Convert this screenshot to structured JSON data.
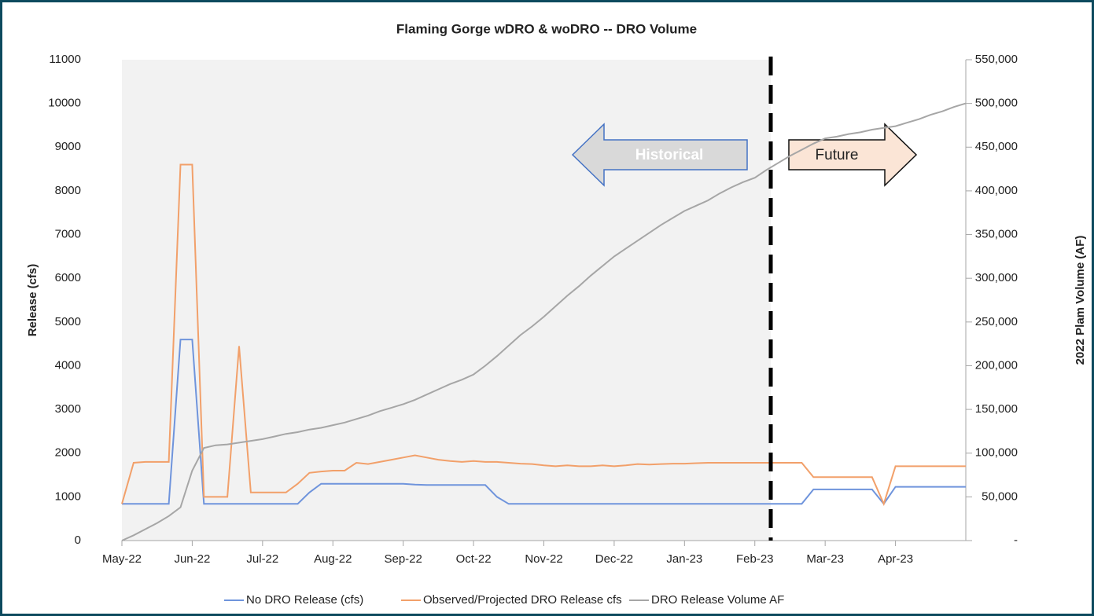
{
  "chart_data": {
    "type": "line",
    "title": "Flaming Gorge wDRO & woDRO -- DRO Volume",
    "y_label": "Release (cfs)",
    "y2_label": "2022 Plam Volume (AF)",
    "annotations": [
      "Historical",
      "Future"
    ],
    "legend": "bottom",
    "categories": [
      "May-22",
      null,
      null,
      null,
      null,
      null,
      "Jun-22",
      null,
      null,
      null,
      null,
      null,
      "Jul-22",
      null,
      null,
      null,
      null,
      null,
      "Aug-22",
      null,
      null,
      null,
      null,
      null,
      "Sep-22",
      null,
      null,
      null,
      null,
      null,
      "Oct-22",
      null,
      null,
      null,
      null,
      null,
      "Nov-22",
      null,
      null,
      null,
      null,
      null,
      "Dec-22",
      null,
      null,
      null,
      null,
      null,
      "Jan-23",
      null,
      null,
      null,
      null,
      null,
      "Feb-23",
      null,
      null,
      null,
      null,
      null,
      "Mar-23",
      null,
      null,
      null,
      null,
      null,
      "Apr-23",
      null,
      null,
      null,
      null,
      null,
      null
    ],
    "series": [
      {
        "name": "No DRO Release (cfs)",
        "color": "#6f94dc",
        "values": [
          840,
          840,
          840,
          840,
          840,
          4600,
          4600,
          840,
          840,
          840,
          840,
          840,
          840,
          840,
          840,
          840,
          1100,
          1300,
          1300,
          1300,
          1300,
          1300,
          1300,
          1300,
          1300,
          1280,
          1270,
          1270,
          1270,
          1270,
          1270,
          1270,
          1000,
          840,
          840,
          840,
          840,
          840,
          840,
          840,
          840,
          840,
          840,
          840,
          840,
          840,
          840,
          840,
          840,
          840,
          840,
          840,
          840,
          840,
          840,
          840,
          840,
          840,
          840,
          1170,
          1170,
          1170,
          1170,
          1170,
          1170,
          840,
          1230,
          1230,
          1230,
          1230,
          1230,
          1230,
          1230
        ]
      },
      {
        "name": "Observed/Projected DRO Release cfs",
        "color": "#f2a06a",
        "values": [
          840,
          1780,
          1800,
          1800,
          1800,
          8600,
          8600,
          1000,
          1000,
          1000,
          4450,
          1100,
          1100,
          1100,
          1100,
          1300,
          1550,
          1580,
          1600,
          1600,
          1780,
          1750,
          1800,
          1850,
          1900,
          1950,
          1900,
          1850,
          1820,
          1800,
          1820,
          1800,
          1800,
          1780,
          1760,
          1750,
          1720,
          1700,
          1720,
          1700,
          1700,
          1720,
          1700,
          1720,
          1750,
          1740,
          1750,
          1760,
          1760,
          1770,
          1780,
          1780,
          1780,
          1780,
          1780,
          1780,
          1780,
          1780,
          1780,
          1450,
          1450,
          1450,
          1450,
          1450,
          1450,
          840,
          1700,
          1700,
          1700,
          1700,
          1700,
          1700,
          1700
        ]
      },
      {
        "name": "DRO Release Volume AF",
        "color": "#a6a6a6",
        "axis": "y2",
        "values": [
          0,
          6000,
          13000,
          20000,
          28000,
          38000,
          80000,
          106000,
          109000,
          110000,
          112000,
          114000,
          116000,
          119000,
          122000,
          124000,
          127000,
          129000,
          132000,
          135000,
          139000,
          143000,
          148000,
          152000,
          156000,
          161000,
          167000,
          173000,
          179000,
          184000,
          190000,
          200000,
          211000,
          223000,
          235000,
          245000,
          256000,
          268000,
          280000,
          291000,
          303000,
          314000,
          325000,
          334000,
          343000,
          352000,
          361000,
          369000,
          377000,
          383000,
          389000,
          397000,
          404000,
          410000,
          415000,
          424000,
          432000,
          440000,
          447000,
          454000,
          460000,
          462000,
          465000,
          467000,
          470000,
          472000,
          474000,
          478000,
          482000,
          487000,
          491000,
          496000,
          500000
        ]
      }
    ],
    "ylim": [
      0,
      11000
    ],
    "yticks": [
      0,
      1000,
      2000,
      3000,
      4000,
      5000,
      6000,
      7000,
      8000,
      9000,
      10000,
      11000
    ],
    "y2lim": [
      0,
      550000
    ],
    "y2ticks": [
      {
        "value": 0,
        "label": "-"
      },
      {
        "value": 50000,
        "label": "50,000"
      },
      {
        "value": 100000,
        "label": "100,000"
      },
      {
        "value": 150000,
        "label": "150,000"
      },
      {
        "value": 200000,
        "label": "200,000"
      },
      {
        "value": 250000,
        "label": "250,000"
      },
      {
        "value": 300000,
        "label": "300,000"
      },
      {
        "value": 350000,
        "label": "350,000"
      },
      {
        "value": 400000,
        "label": "400,000"
      },
      {
        "value": 450000,
        "label": "450,000"
      },
      {
        "value": 500000,
        "label": "500,000"
      },
      {
        "value": 550000,
        "label": "550,000"
      }
    ]
  }
}
